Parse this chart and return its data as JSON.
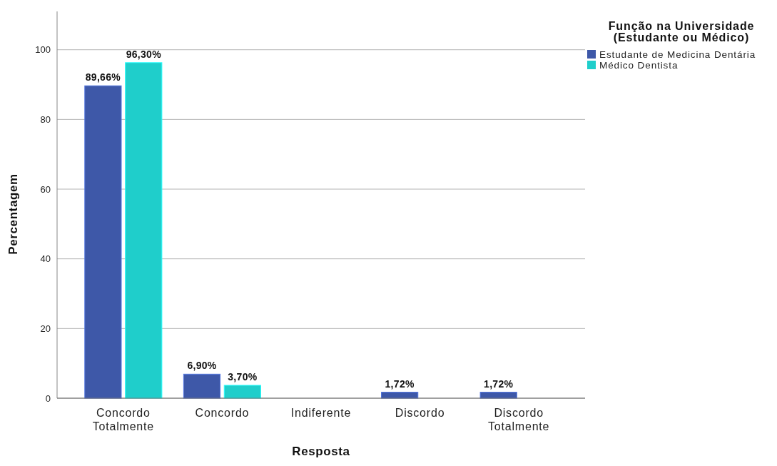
{
  "chart_data": {
    "type": "bar",
    "categories": [
      "Concordo Totalmente",
      "Concordo",
      "Indiferente",
      "Discordo",
      "Discordo Totalmente"
    ],
    "series": [
      {
        "name": "Estudante de Medicina Dentária",
        "color": "#3e58a8",
        "values": [
          89.66,
          6.9,
          null,
          1.72,
          1.72
        ],
        "value_labels": [
          "89,66%",
          "6,90%",
          null,
          "1,72%",
          "1,72%"
        ]
      },
      {
        "name": "Médico Dentista",
        "color": "#1fcecb",
        "values": [
          96.3,
          3.7,
          null,
          null,
          null
        ],
        "value_labels": [
          "96,30%",
          "3,70%",
          null,
          null,
          null
        ]
      }
    ],
    "xlabel": "Resposta",
    "ylabel": "Percentagem",
    "legend_title": "Função na Universidade (Estudante ou Médico)",
    "ylim": [
      0,
      111
    ],
    "yticks": [
      0,
      20,
      40,
      60,
      80,
      100
    ],
    "grid": "y",
    "legend": "top right"
  }
}
